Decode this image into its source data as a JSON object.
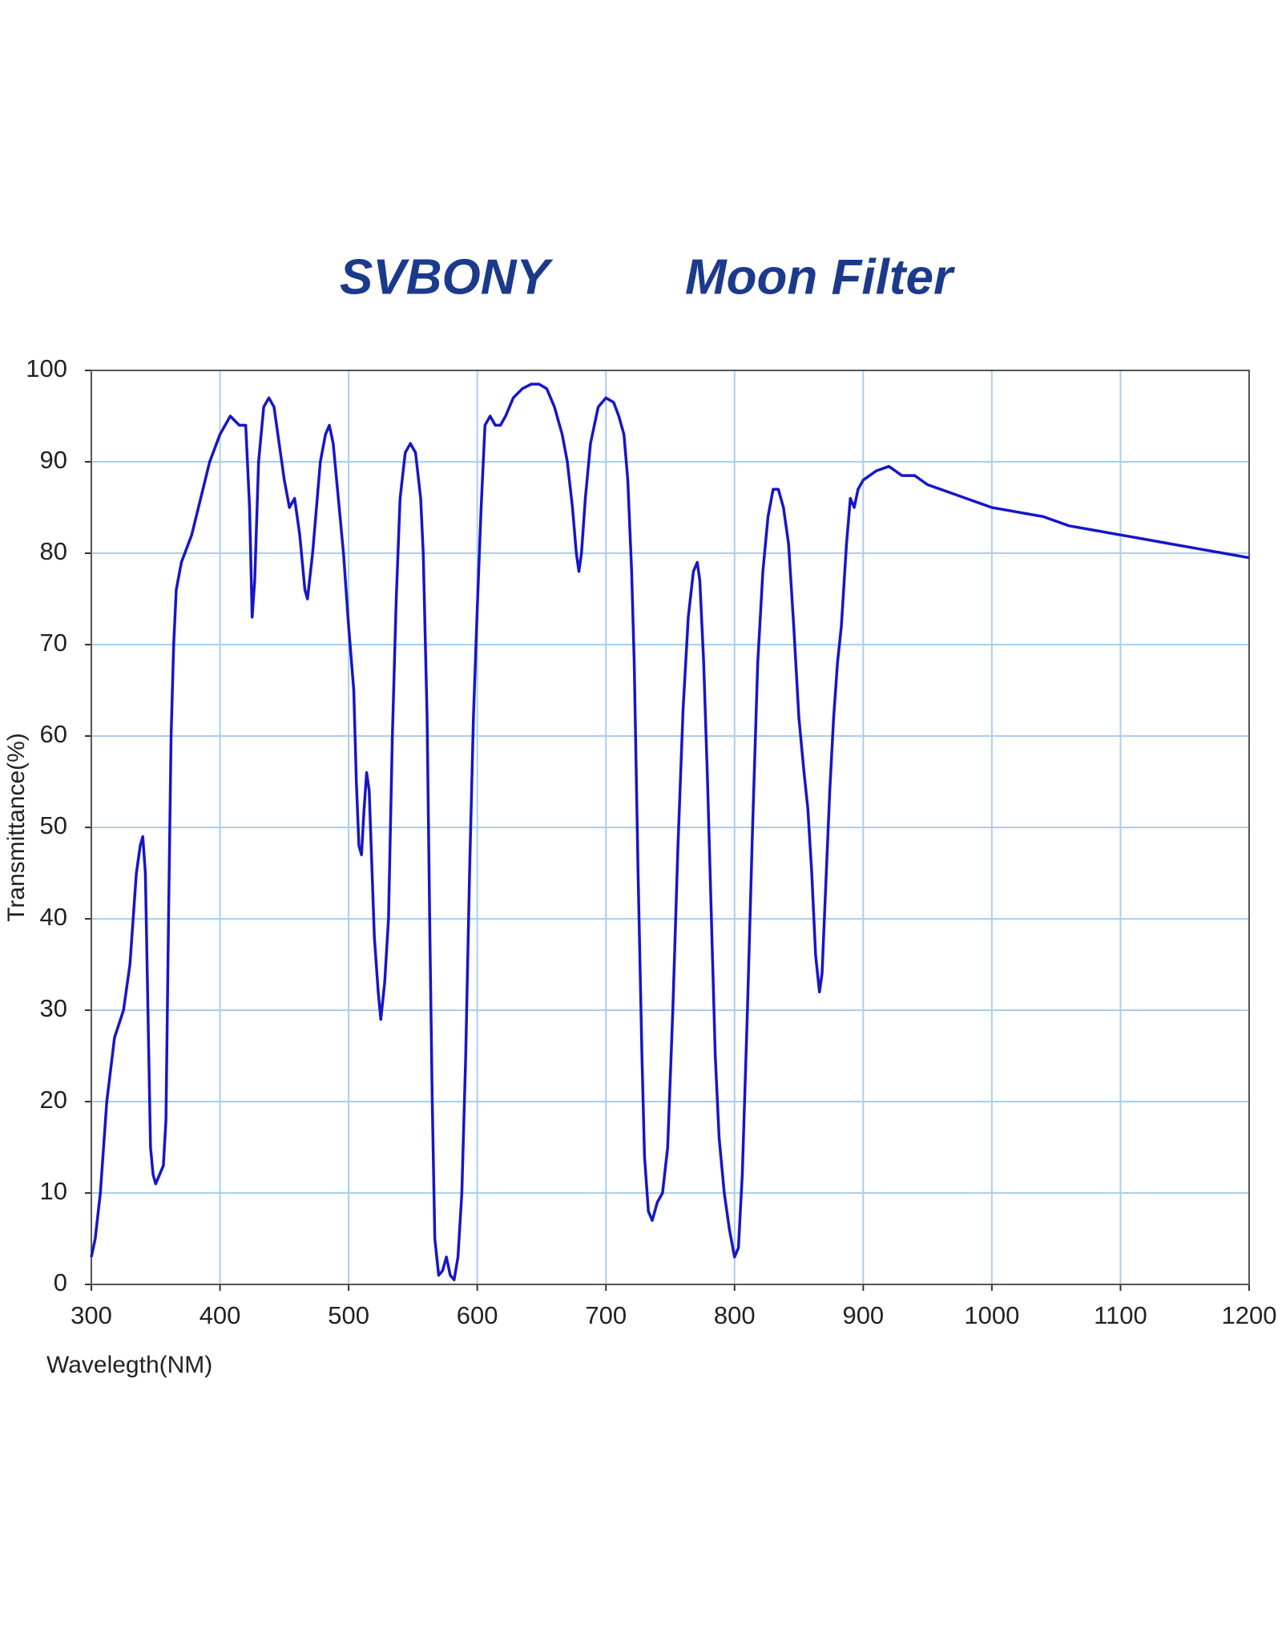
{
  "chart_data": {
    "type": "line",
    "brand": "SVBONY",
    "title": "Moon Filter",
    "xlabel": "Wavelegth(NM)",
    "ylabel": "Transmittance(%)",
    "xlim": [
      300,
      1200
    ],
    "ylim": [
      0,
      100
    ],
    "xticks": [
      300,
      400,
      500,
      600,
      700,
      800,
      900,
      1000,
      1100,
      1200
    ],
    "yticks": [
      0,
      10,
      20,
      30,
      40,
      50,
      60,
      70,
      80,
      90,
      100
    ],
    "grid": true,
    "grid_color": "#a8cfee",
    "x": [
      300,
      303,
      307,
      312,
      318,
      325,
      330,
      335,
      338,
      340,
      342,
      344,
      346,
      348,
      350,
      353,
      356,
      358,
      360,
      362,
      364,
      366,
      370,
      378,
      385,
      392,
      400,
      408,
      415,
      420,
      423,
      425,
      427,
      430,
      434,
      438,
      442,
      446,
      450,
      454,
      458,
      462,
      466,
      468,
      472,
      478,
      482,
      485,
      488,
      492,
      496,
      500,
      504,
      506,
      508,
      510,
      512,
      514,
      516,
      518,
      520,
      523,
      525,
      528,
      531,
      534,
      537,
      540,
      544,
      548,
      552,
      556,
      558,
      561,
      563,
      565,
      567,
      570,
      573,
      576,
      579,
      582,
      585,
      588,
      591,
      594,
      597,
      600,
      603,
      606,
      610,
      614,
      618,
      622,
      628,
      635,
      642,
      648,
      654,
      660,
      666,
      670,
      674,
      677,
      679,
      681,
      684,
      688,
      694,
      700,
      706,
      710,
      714,
      717,
      720,
      722,
      725,
      728,
      730,
      733,
      736,
      740,
      744,
      748,
      752,
      756,
      760,
      764,
      768,
      771,
      773,
      776,
      779,
      782,
      785,
      788,
      792,
      796,
      800,
      803,
      806,
      810,
      814,
      818,
      822,
      826,
      830,
      834,
      838,
      842,
      846,
      850,
      854,
      857,
      860,
      863,
      866,
      868,
      871,
      874,
      877,
      880,
      883,
      887,
      890,
      893,
      896,
      900,
      910,
      920,
      930,
      940,
      950,
      960,
      970,
      980,
      990,
      1000,
      1020,
      1040,
      1060,
      1080,
      1100,
      1120,
      1140,
      1160,
      1180,
      1200
    ],
    "series": [
      {
        "name": "Moon Filter",
        "color": "#1616c8",
        "values": [
          3,
          5,
          10,
          20,
          27,
          30,
          35,
          45,
          48,
          49,
          45,
          30,
          15,
          12,
          11,
          12,
          13,
          18,
          40,
          60,
          70,
          76,
          79,
          82,
          86,
          90,
          93,
          95,
          94,
          94,
          85,
          73,
          77,
          90,
          96,
          97,
          96,
          92,
          88,
          85,
          86,
          82,
          76,
          75,
          80,
          90,
          93,
          94,
          92,
          86,
          80,
          72,
          65,
          55,
          48,
          47,
          52,
          56,
          54,
          46,
          38,
          32,
          29,
          33,
          40,
          60,
          75,
          86,
          91,
          92,
          91,
          86,
          80,
          62,
          40,
          20,
          5,
          1,
          1.5,
          3,
          1,
          0.5,
          3,
          10,
          25,
          45,
          62,
          74,
          85,
          94,
          95,
          94,
          94,
          95,
          97,
          98,
          98.5,
          98.5,
          98,
          96,
          93,
          90,
          85,
          80,
          78,
          80,
          86,
          92,
          96,
          97,
          96.5,
          95,
          93,
          88,
          78,
          68,
          45,
          25,
          14,
          8,
          7,
          9,
          10,
          15,
          30,
          48,
          63,
          73,
          78,
          79,
          77,
          68,
          55,
          40,
          25,
          16,
          10,
          6,
          3,
          4,
          12,
          30,
          50,
          68,
          78,
          84,
          87,
          87,
          85,
          81,
          72,
          62,
          56,
          52,
          45,
          36,
          32,
          34,
          44,
          54,
          62,
          68,
          72,
          81,
          86,
          85,
          87,
          88,
          89,
          89.5,
          88.5,
          88.5,
          87.5,
          87,
          86.5,
          86,
          85.5,
          85,
          84.5,
          84,
          83,
          82.5,
          82,
          81.5,
          81,
          80.5,
          80,
          79.5
        ]
      }
    ]
  }
}
